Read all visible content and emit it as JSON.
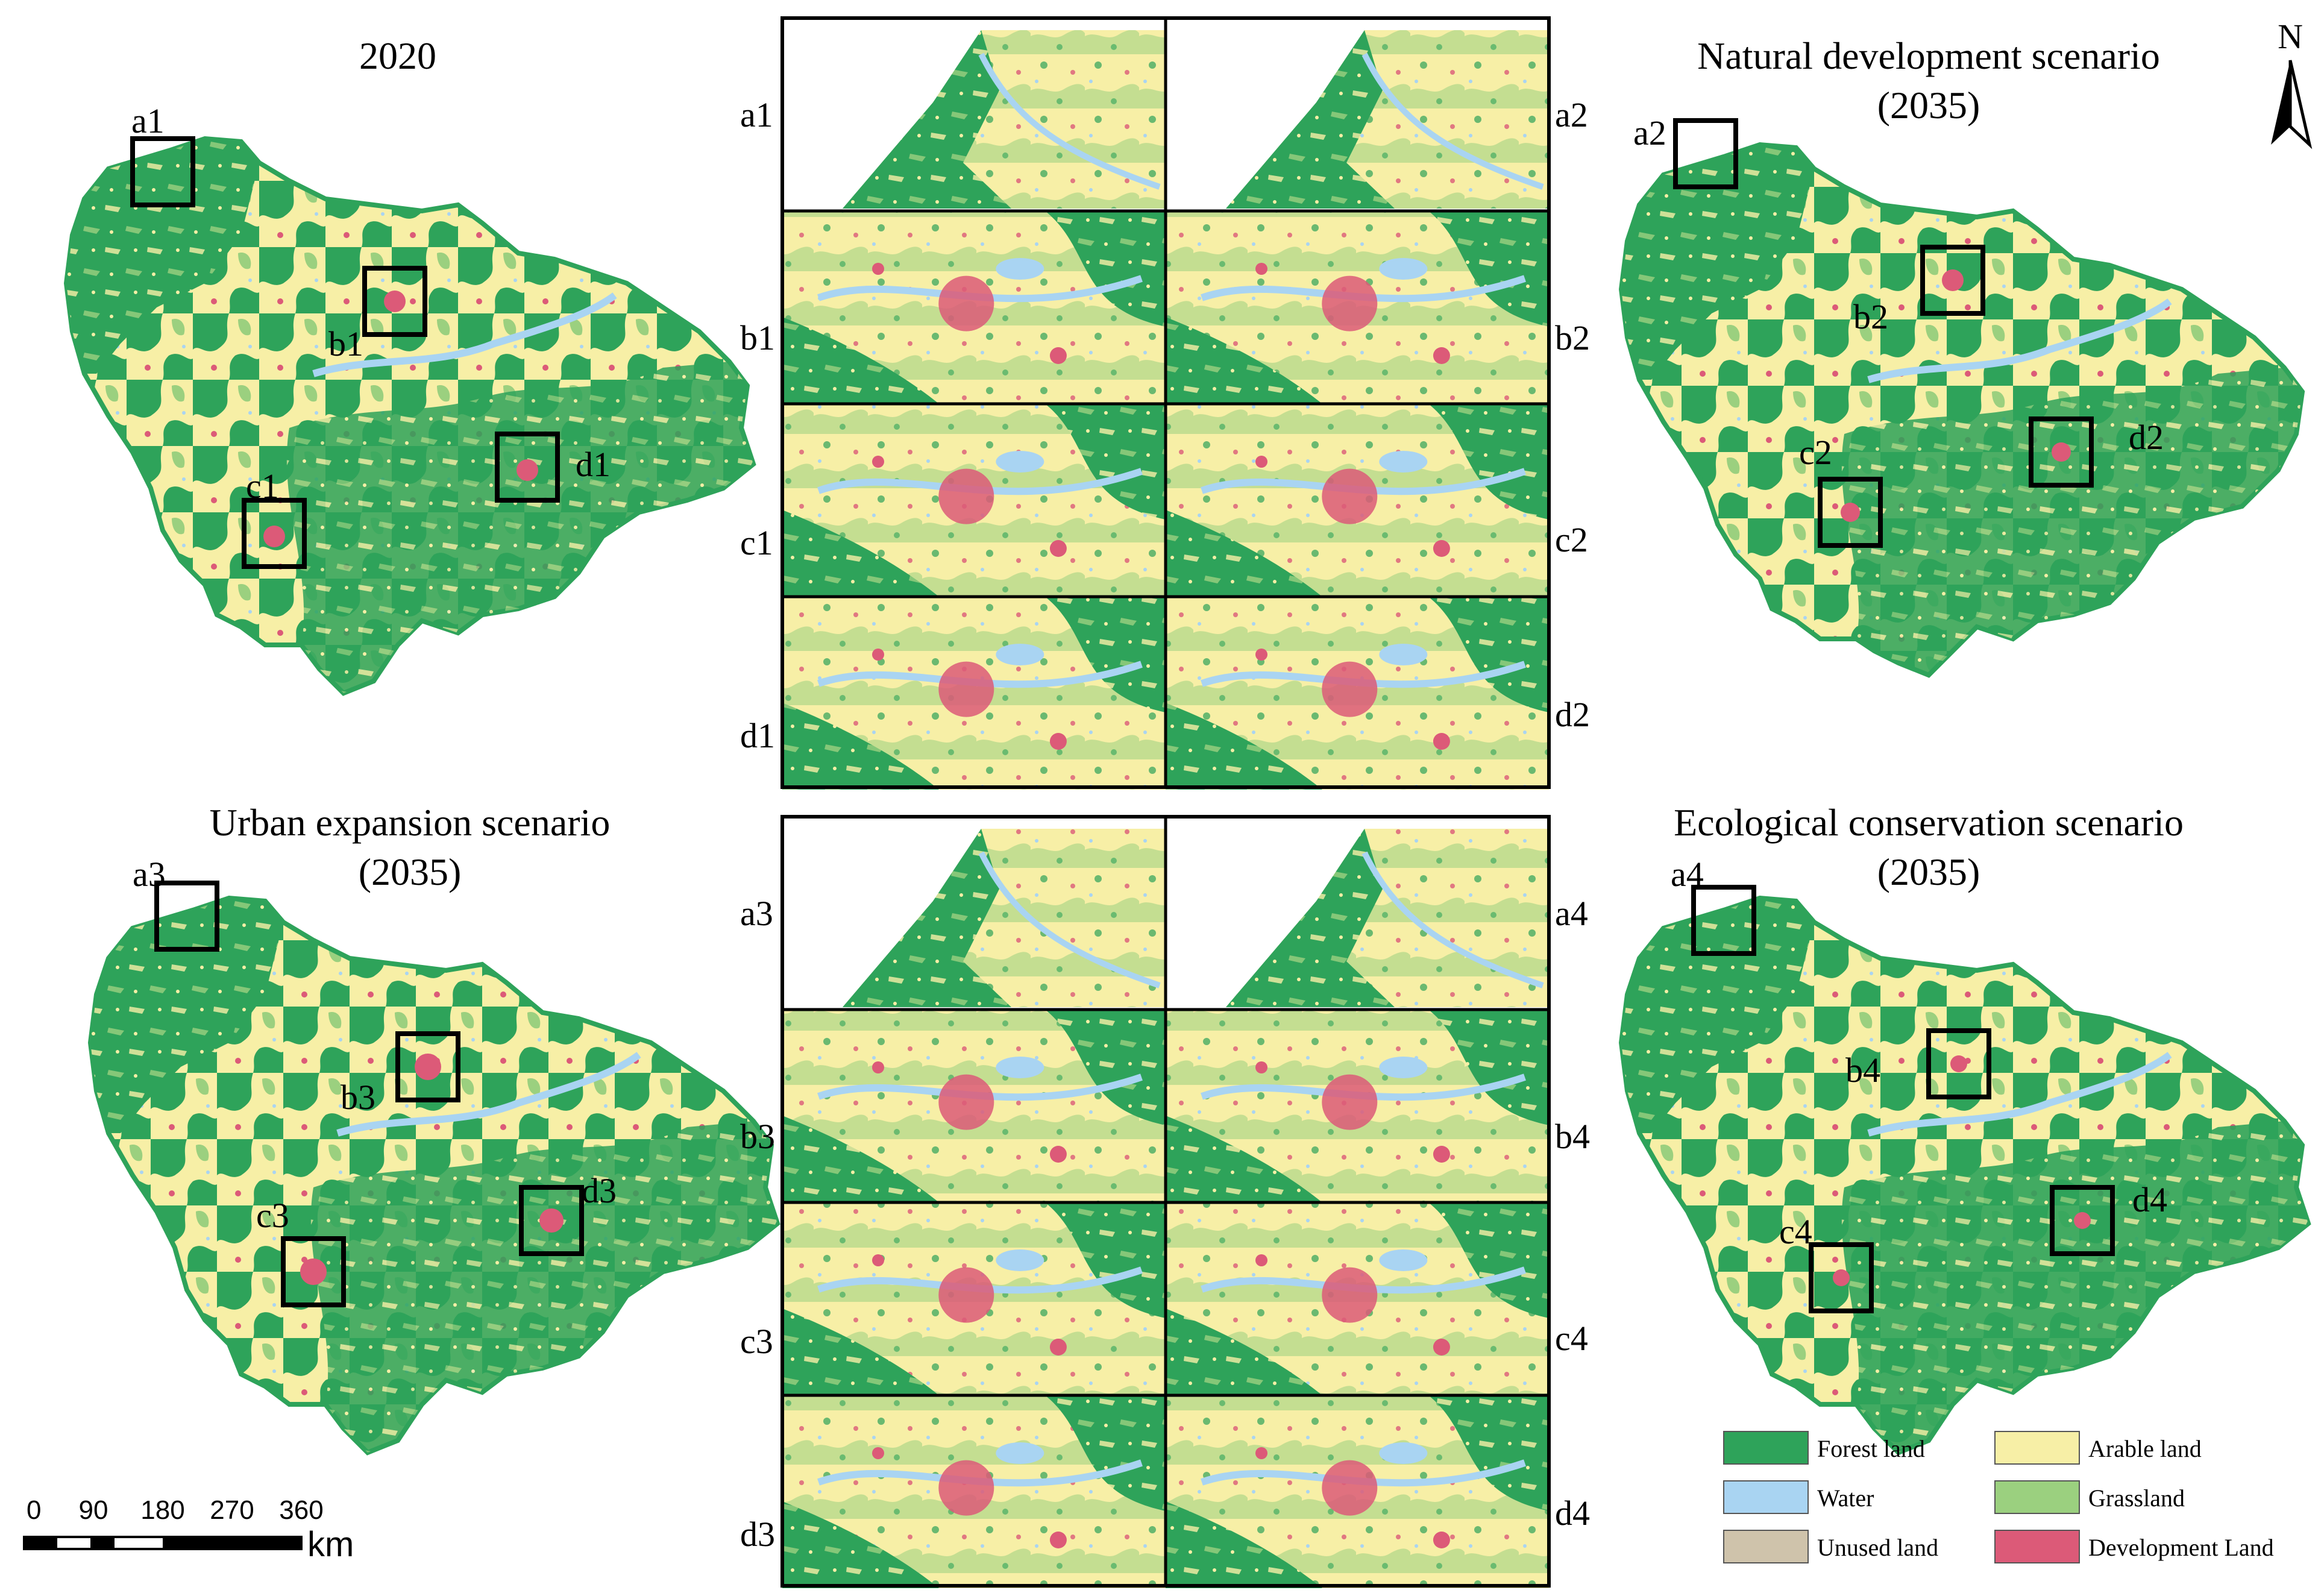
{
  "colors": {
    "forest": "#2ea35a",
    "arable": "#f7efa6",
    "water": "#a9d4f2",
    "grassland": "#9bd07f",
    "unused": "#cfc3ab",
    "development": "#dc5a78",
    "frame": "#000000"
  },
  "maps": [
    {
      "title_lines": [
        "2020"
      ],
      "boxes": [
        "a1",
        "b1",
        "c1",
        "d1"
      ]
    },
    {
      "title_lines": [
        "Natural development scenario",
        "(2035)"
      ],
      "boxes": [
        "a2",
        "b2",
        "c2",
        "d2"
      ]
    },
    {
      "title_lines": [
        "Urban expansion scenario",
        "(2035)"
      ],
      "boxes": [
        "a3",
        "b3",
        "c3",
        "d3"
      ]
    },
    {
      "title_lines": [
        "Ecological conservation scenario",
        "(2035)"
      ],
      "boxes": [
        "a4",
        "b4",
        "c4",
        "d4"
      ]
    }
  ],
  "inset_panels": [
    {
      "left_labels": [
        "a1",
        "b1",
        "c1",
        "d1"
      ],
      "right_labels": [
        "a2",
        "b2",
        "c2",
        "d2"
      ]
    },
    {
      "left_labels": [
        "a3",
        "b3",
        "c3",
        "d3"
      ],
      "right_labels": [
        "a4",
        "b4",
        "c4",
        "d4"
      ]
    }
  ],
  "north_arrow": {
    "label": "N",
    "icon": "north-arrow-icon"
  },
  "scale_bar": {
    "ticks": [
      "0",
      "90",
      "180",
      "270",
      "360"
    ],
    "unit": "km"
  },
  "legend": [
    {
      "label": "Forest land",
      "color_key": "forest"
    },
    {
      "label": "Arable land",
      "color_key": "arable"
    },
    {
      "label": "Water",
      "color_key": "water"
    },
    {
      "label": "Grassland",
      "color_key": "grassland"
    },
    {
      "label": "Unused land",
      "color_key": "unused"
    },
    {
      "label": "Development Land",
      "color_key": "development"
    }
  ]
}
